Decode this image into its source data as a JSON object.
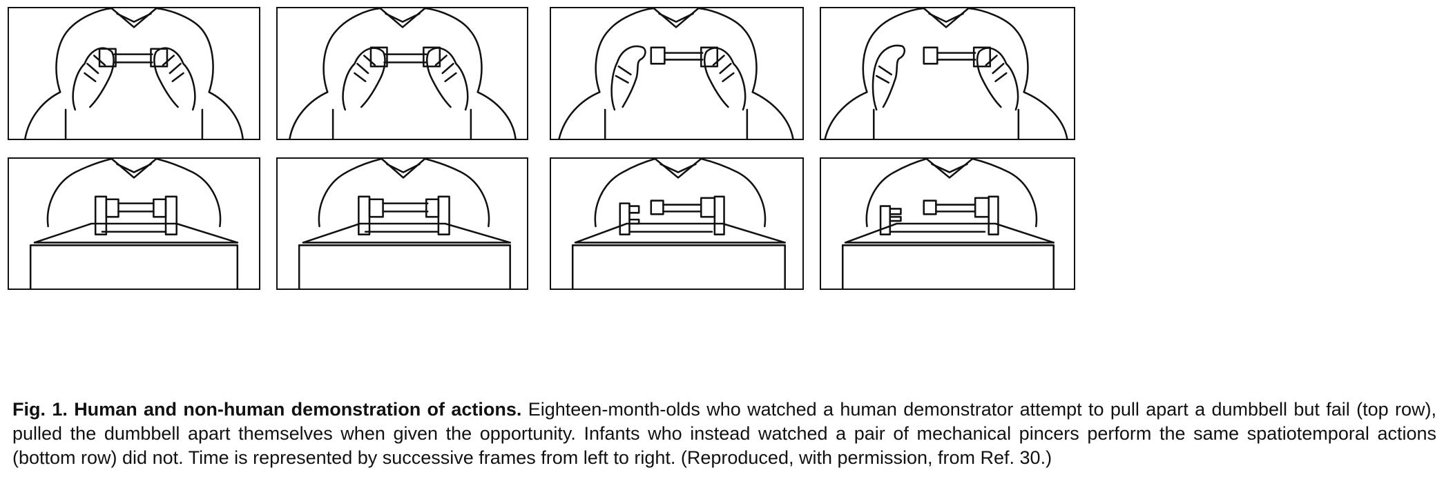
{
  "figure": {
    "label": "Fig. 1.",
    "title": "Human and non-human demonstration of actions.",
    "caption": "Eighteen-month-olds who watched a human demonstrator attempt to pull apart a dumbbell but fail (top row), pulled the dumbbell apart themselves when given the opportunity. Infants who instead watched a pair of mechanical pincers perform the same spatiotemporal actions (bottom row) did not. Time is represented by successive frames from left to right. (Reproduced, with permission, from Ref. 30.)"
  },
  "rows": [
    {
      "row": "top",
      "demonstrator": "human",
      "frames": 4
    },
    {
      "row": "bottom",
      "demonstrator": "mechanical-pincers",
      "frames": 4
    }
  ],
  "colors": {
    "ink": "#111111",
    "background": "#ffffff"
  }
}
